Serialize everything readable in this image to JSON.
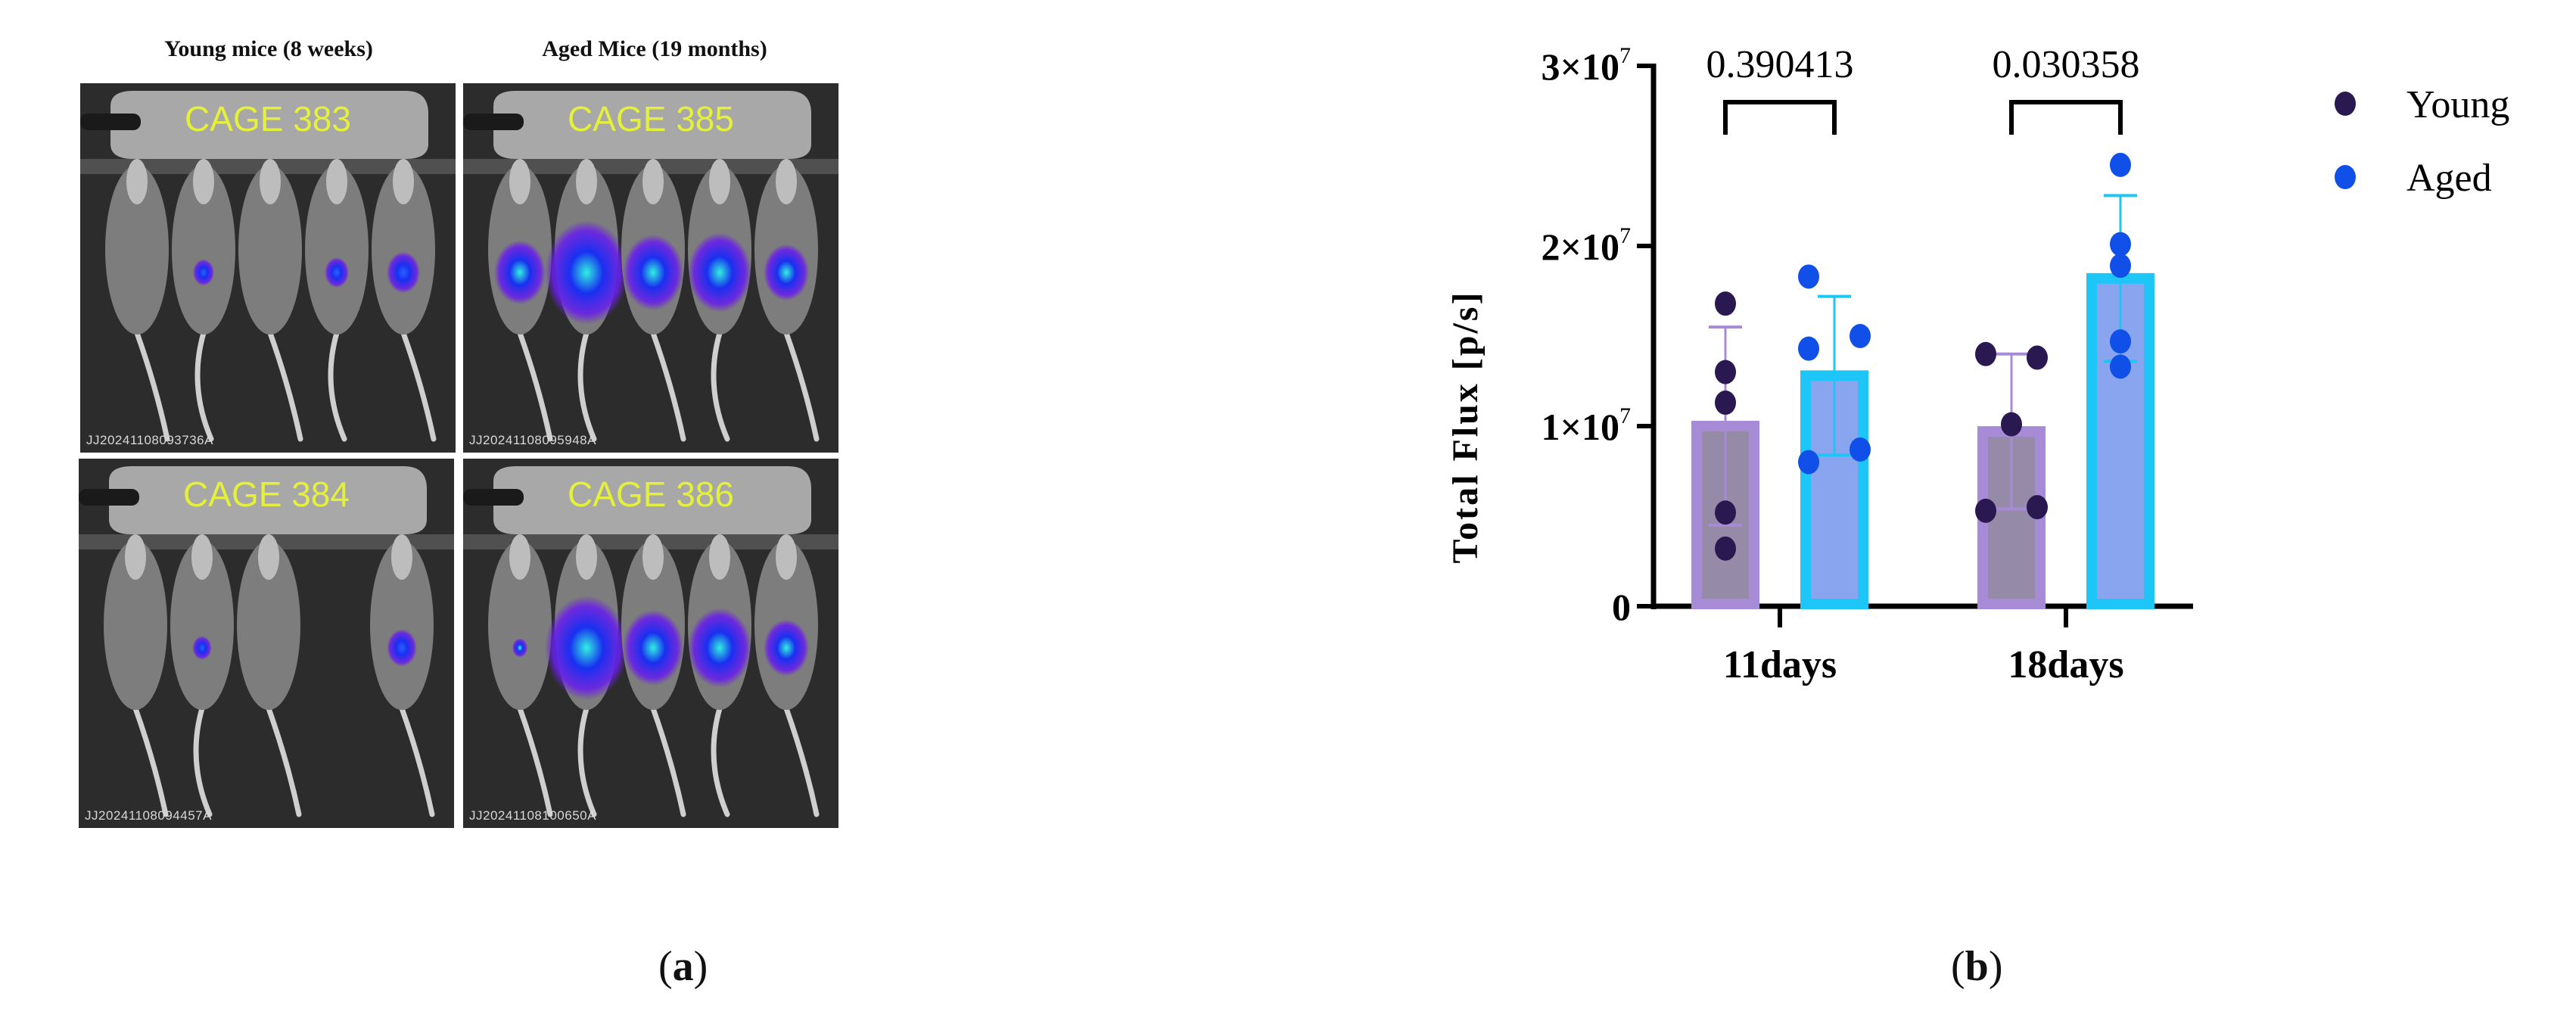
{
  "figure_a": {
    "headers": [
      "Young mice (8 weeks)",
      "Aged Mice (19 months)"
    ],
    "panels": [
      {
        "cage": "CAGE 383",
        "id": "JJ20241108093736A",
        "group": "young"
      },
      {
        "cage": "CAGE 385",
        "id": "JJ20241108095948A",
        "group": "aged"
      },
      {
        "cage": "CAGE 384",
        "id": "JJ20241108094457A",
        "group": "young"
      },
      {
        "cage": "CAGE 386",
        "id": "JJ20241108100650A",
        "group": "aged"
      }
    ],
    "label_open": "(",
    "label_letter": "a",
    "label_close": ")"
  },
  "figure_b": {
    "label_open": "(",
    "label_letter": "b",
    "label_close": ")"
  },
  "chart_data": {
    "type": "bar",
    "ylabel": "Total Flux [p/s]",
    "xlabel": "",
    "categories": [
      "11days",
      "18days"
    ],
    "ylim": [
      0,
      30000000
    ],
    "yticks": [
      {
        "value": 0,
        "label": "0"
      },
      {
        "value": 10000000,
        "label": "1×10",
        "exp": "7"
      },
      {
        "value": 20000000,
        "label": "2×10",
        "exp": "7"
      },
      {
        "value": 30000000,
        "label": "3×10",
        "exp": "7"
      }
    ],
    "grid": false,
    "legend_position": "top-right",
    "series": [
      {
        "name": "Young",
        "bar_fill": "#958aa8",
        "bar_edge": "#a88bd6",
        "dot_color": "#2a1850",
        "means": [
          10000000,
          9700000
        ],
        "sd": [
          5500000,
          4300000
        ],
        "points": [
          [
            16800000,
            13000000,
            11300000,
            5200000,
            3200000
          ],
          [
            14000000,
            13800000,
            10100000,
            5300000,
            5500000
          ]
        ]
      },
      {
        "name": "Aged",
        "bar_fill": "#8aa5f0",
        "bar_edge": "#1ec6f8",
        "dot_color": "#1050e8",
        "means": [
          12800000,
          18200000
        ],
        "sd": [
          4400000,
          4600000
        ],
        "points": [
          [
            18300000,
            14300000,
            15000000,
            8000000,
            8700000
          ],
          [
            24500000,
            20100000,
            18900000,
            14700000,
            13300000
          ]
        ]
      }
    ],
    "comparisons": [
      {
        "category": "11days",
        "p_value": "0.390413"
      },
      {
        "category": "18days",
        "p_value": "0.030358"
      }
    ]
  }
}
